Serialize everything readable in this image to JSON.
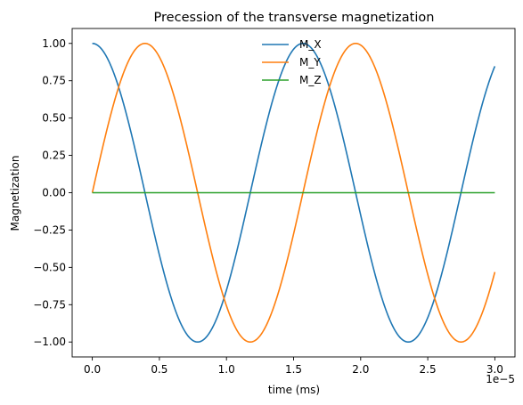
{
  "chart_data": {
    "type": "line",
    "title": "Precession of the transverse magnetization",
    "xlabel": "time (ms)",
    "ylabel": "Magnetization",
    "x_offset_label": "1e−5",
    "xlim": [
      -0.15,
      3.15
    ],
    "ylim": [
      -1.1,
      1.1
    ],
    "x_ticks": [
      0.0,
      0.5,
      1.0,
      1.5,
      2.0,
      2.5,
      3.0
    ],
    "x_tick_labels": [
      "0.0",
      "0.5",
      "1.0",
      "1.5",
      "2.0",
      "2.5",
      "3.0"
    ],
    "y_ticks": [
      -1.0,
      -0.75,
      -0.5,
      -0.25,
      0.0,
      0.25,
      0.5,
      0.75,
      1.0
    ],
    "y_tick_labels": [
      "−1.00",
      "−0.75",
      "−0.50",
      "−0.25",
      "0.00",
      "0.25",
      "0.50",
      "0.75",
      "1.00"
    ],
    "grid": false,
    "legend_position": "top-center",
    "x_range": [
      0.0,
      3.0
    ],
    "period": 1.57,
    "series": [
      {
        "name": "M_X",
        "function": "cos",
        "amplitude": 1.0,
        "color": "#1f77b4"
      },
      {
        "name": "M_Y",
        "function": "sin",
        "amplitude": 1.0,
        "color": "#ff7f0e"
      },
      {
        "name": "M_Z",
        "function": "zero",
        "amplitude": 0.0,
        "color": "#2ca02c"
      }
    ]
  }
}
